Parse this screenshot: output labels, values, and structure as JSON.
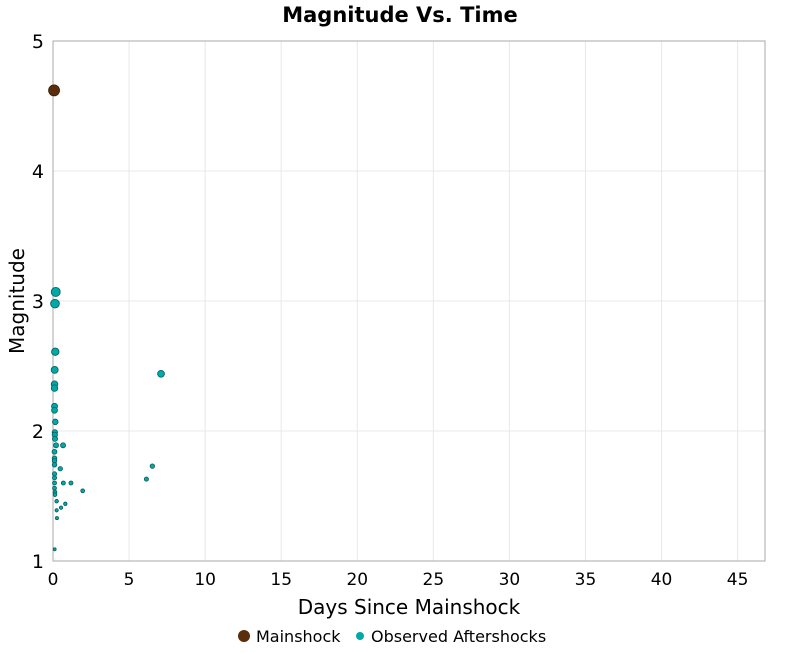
{
  "chart_data": {
    "type": "scatter",
    "title": "Magnitude Vs. Time",
    "xlabel": "Days Since Mainshock",
    "ylabel": "Magnitude",
    "xlim": [
      0,
      46.8
    ],
    "ylim": [
      1,
      5
    ],
    "xticks": [
      0,
      5,
      10,
      15,
      20,
      25,
      30,
      35,
      40,
      45
    ],
    "yticks": [
      1,
      2,
      3,
      4,
      5
    ],
    "grid": true,
    "legend_position": "bottom",
    "series": [
      {
        "name": "Mainshock",
        "color": "#5a2d0c",
        "points": [
          {
            "x": 0.07,
            "y": 4.62
          }
        ]
      },
      {
        "name": "Observed Aftershocks",
        "color": "#00a8a8",
        "points": [
          {
            "x": 0.18,
            "y": 3.07
          },
          {
            "x": 0.13,
            "y": 2.98
          },
          {
            "x": 0.15,
            "y": 2.61
          },
          {
            "x": 0.11,
            "y": 2.47
          },
          {
            "x": 0.1,
            "y": 2.36
          },
          {
            "x": 0.1,
            "y": 2.33
          },
          {
            "x": 7.1,
            "y": 2.44
          },
          {
            "x": 0.1,
            "y": 2.19
          },
          {
            "x": 0.1,
            "y": 2.16
          },
          {
            "x": 0.15,
            "y": 2.07
          },
          {
            "x": 0.12,
            "y": 1.99
          },
          {
            "x": 0.12,
            "y": 1.97
          },
          {
            "x": 0.13,
            "y": 1.94
          },
          {
            "x": 0.2,
            "y": 1.89
          },
          {
            "x": 0.66,
            "y": 1.89
          },
          {
            "x": 0.1,
            "y": 1.84
          },
          {
            "x": 0.1,
            "y": 1.79
          },
          {
            "x": 0.1,
            "y": 1.77
          },
          {
            "x": 0.1,
            "y": 1.74
          },
          {
            "x": 0.48,
            "y": 1.71
          },
          {
            "x": 6.53,
            "y": 1.73
          },
          {
            "x": 6.14,
            "y": 1.63
          },
          {
            "x": 0.1,
            "y": 1.67
          },
          {
            "x": 0.1,
            "y": 1.64
          },
          {
            "x": 0.1,
            "y": 1.6
          },
          {
            "x": 0.68,
            "y": 1.6
          },
          {
            "x": 1.18,
            "y": 1.6
          },
          {
            "x": 0.1,
            "y": 1.56
          },
          {
            "x": 0.13,
            "y": 1.53
          },
          {
            "x": 0.13,
            "y": 1.51
          },
          {
            "x": 1.95,
            "y": 1.54
          },
          {
            "x": 0.24,
            "y": 1.46
          },
          {
            "x": 0.81,
            "y": 1.44
          },
          {
            "x": 0.53,
            "y": 1.41
          },
          {
            "x": 0.24,
            "y": 1.39
          },
          {
            "x": 0.26,
            "y": 1.33
          },
          {
            "x": 0.11,
            "y": 1.09
          }
        ]
      }
    ]
  }
}
